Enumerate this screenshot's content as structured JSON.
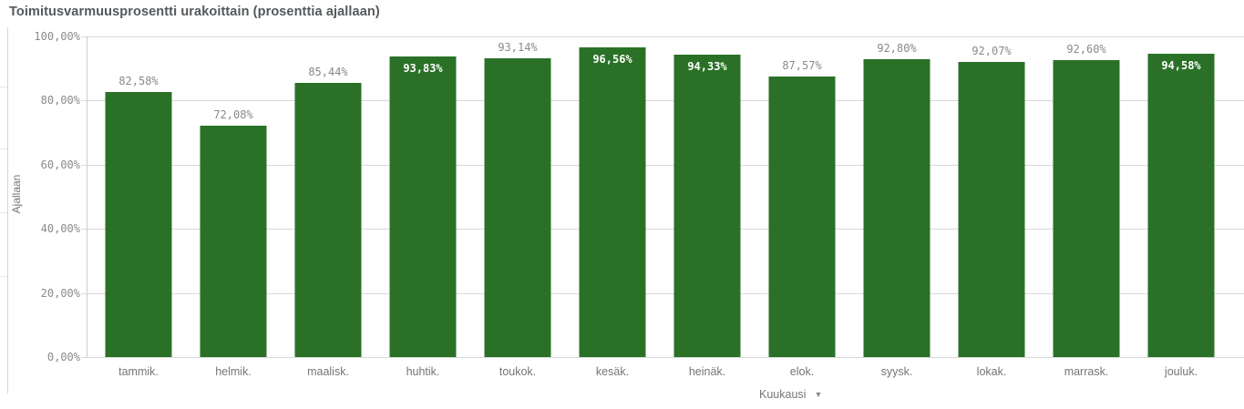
{
  "panel": {
    "title": "Toimitusvarmuusprosentti urakoittain (prosenttia ajallaan)"
  },
  "chart_data": {
    "type": "bar",
    "title": "Toimitusvarmuusprosentti urakoittain (prosenttia ajallaan)",
    "xlabel": "Kuukausi",
    "ylabel": "Ajallaan",
    "categories": [
      "tammik.",
      "helmik.",
      "maalisk.",
      "huhtik.",
      "toukok.",
      "kesäk.",
      "heinäk.",
      "elok.",
      "syysk.",
      "lokak.",
      "marrask.",
      "jouluk."
    ],
    "values": [
      82.58,
      72.08,
      85.44,
      93.83,
      93.14,
      96.56,
      94.33,
      87.57,
      92.8,
      92.07,
      92.6,
      94.58
    ],
    "value_labels": [
      "82,58%",
      "72,08%",
      "85,44%",
      "93,83%",
      "93,14%",
      "96,56%",
      "94,33%",
      "87,57%",
      "92,80%",
      "92,07%",
      "92,60%",
      "94,58%"
    ],
    "label_placement": [
      "above",
      "above",
      "above",
      "inside",
      "above",
      "inside",
      "inside",
      "above",
      "above",
      "above",
      "above",
      "inside"
    ],
    "ylim": [
      0,
      100
    ],
    "yticks": [
      {
        "value": 100,
        "label": "100,00%"
      },
      {
        "value": 80,
        "label": "80,00%"
      },
      {
        "value": 60,
        "label": "60,00%"
      },
      {
        "value": 40,
        "label": "40,00%"
      },
      {
        "value": 20,
        "label": "20,00%"
      },
      {
        "value": 0,
        "label": "0,00%"
      }
    ],
    "grid": true,
    "legend": false,
    "bar_color": "#2a7127",
    "gridline_color": "#d9d9d9",
    "x_axis_dropdown_icon": "▼"
  }
}
